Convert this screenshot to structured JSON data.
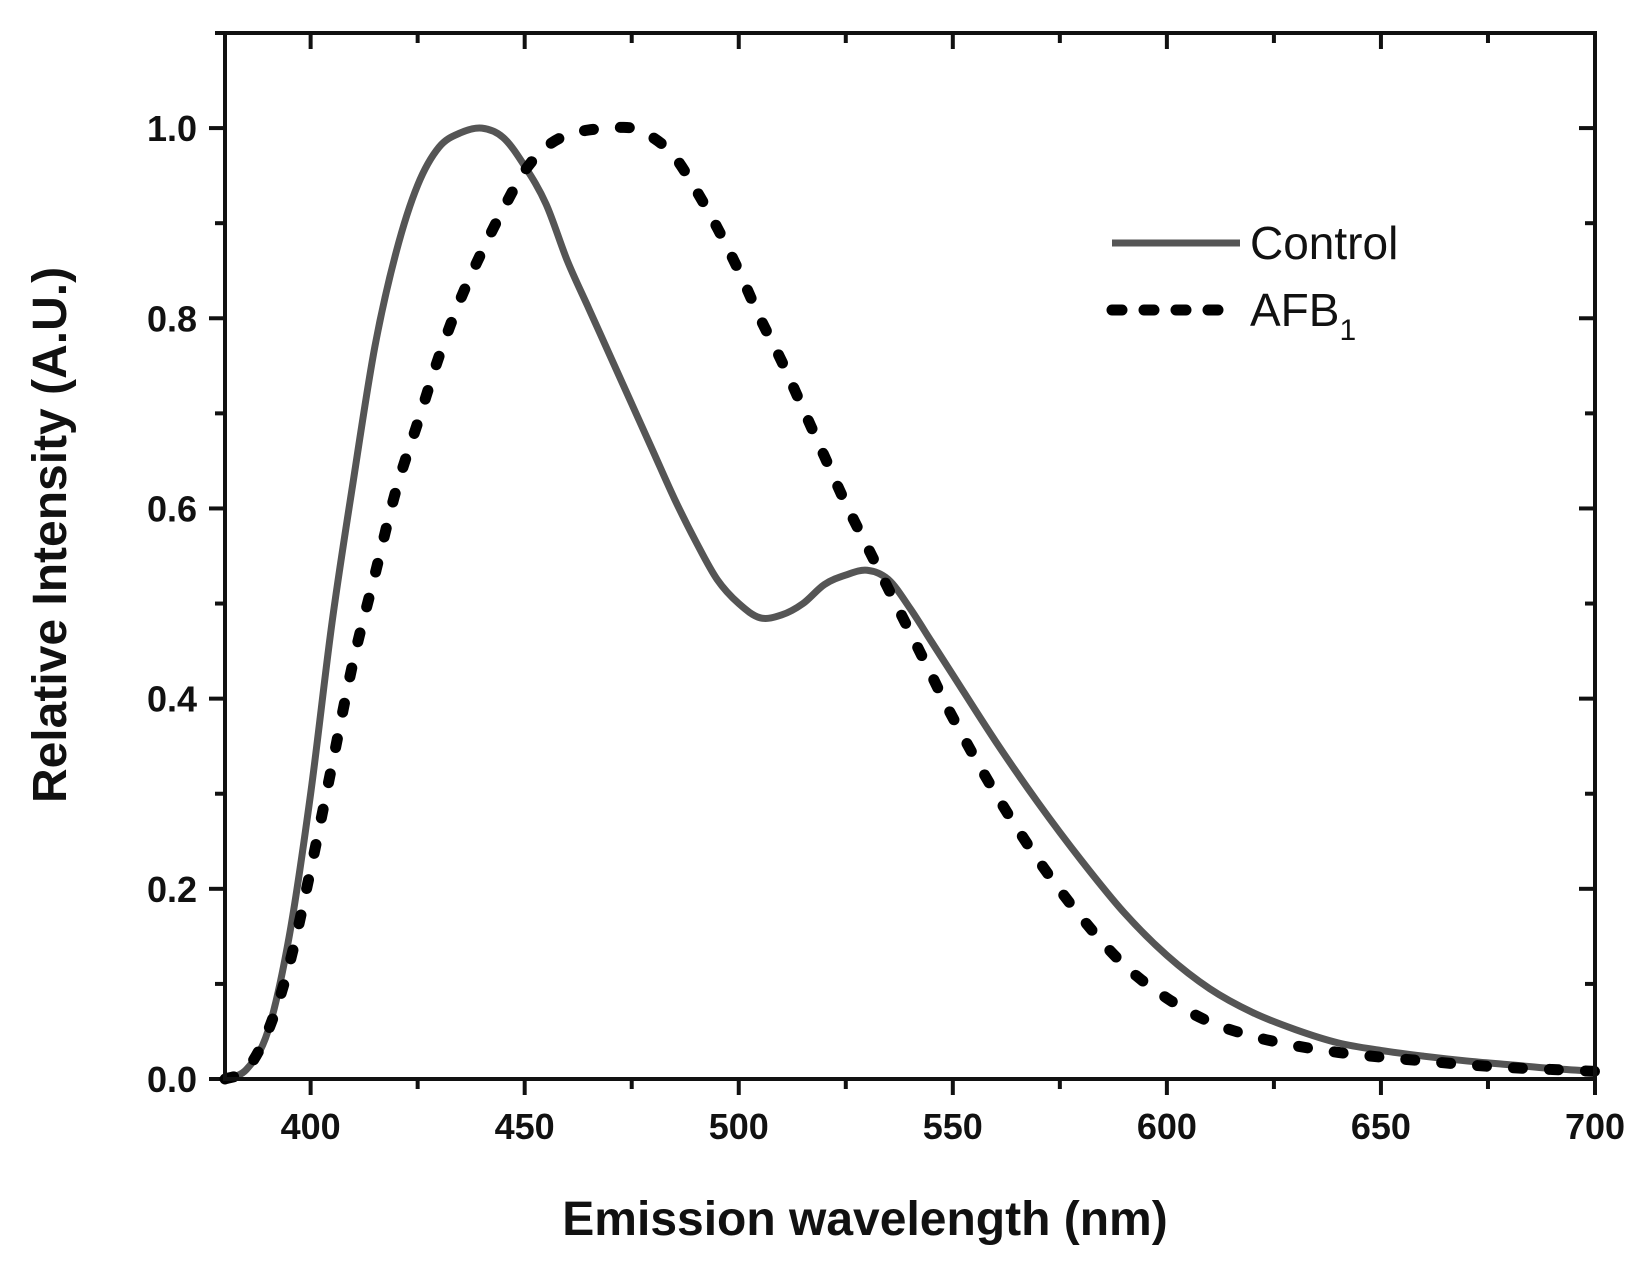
{
  "chart_data": {
    "type": "line",
    "xlabel": "Emission wavelength (nm)",
    "ylabel": "Relative Intensity (A.U.)",
    "xlim": [
      380,
      700
    ],
    "ylim": [
      0,
      1.1
    ],
    "x_ticks": [
      400,
      450,
      500,
      550,
      600,
      650,
      700
    ],
    "x_tick_labels": [
      "400",
      "450",
      "500",
      "550",
      "600",
      "650",
      "700"
    ],
    "y_ticks": [
      0.0,
      0.2,
      0.4,
      0.6,
      0.8,
      1.0
    ],
    "y_tick_labels": [
      "0.0",
      "0.2",
      "0.4",
      "0.6",
      "0.8",
      "1.0"
    ],
    "grid": false,
    "legend_position": "top-right",
    "series": [
      {
        "name": "Control",
        "legend_label": "Control",
        "style": "solid",
        "color": "#555555",
        "x": [
          380,
          385,
          390,
          395,
          400,
          405,
          410,
          415,
          420,
          425,
          430,
          435,
          440,
          445,
          450,
          455,
          460,
          465,
          470,
          475,
          480,
          485,
          490,
          495,
          500,
          505,
          510,
          515,
          520,
          525,
          530,
          535,
          540,
          545,
          550,
          560,
          570,
          580,
          590,
          600,
          610,
          620,
          630,
          640,
          650,
          660,
          670,
          680,
          690,
          700
        ],
        "y": [
          0.0,
          0.01,
          0.05,
          0.15,
          0.3,
          0.48,
          0.63,
          0.77,
          0.87,
          0.94,
          0.98,
          0.995,
          1.0,
          0.99,
          0.96,
          0.92,
          0.86,
          0.81,
          0.76,
          0.71,
          0.66,
          0.61,
          0.565,
          0.525,
          0.5,
          0.485,
          0.488,
          0.5,
          0.52,
          0.53,
          0.535,
          0.525,
          0.495,
          0.46,
          0.425,
          0.355,
          0.29,
          0.23,
          0.175,
          0.13,
          0.095,
          0.07,
          0.052,
          0.038,
          0.03,
          0.024,
          0.019,
          0.015,
          0.011,
          0.008
        ]
      },
      {
        "name": "AFB1",
        "legend_label": "AFB",
        "legend_subscript": "1",
        "style": "dotted",
        "color": "#000000",
        "x": [
          380,
          385,
          390,
          395,
          400,
          405,
          410,
          415,
          420,
          425,
          430,
          435,
          440,
          445,
          450,
          455,
          460,
          465,
          470,
          475,
          480,
          485,
          490,
          495,
          500,
          505,
          510,
          515,
          520,
          525,
          530,
          535,
          540,
          545,
          550,
          560,
          570,
          580,
          590,
          600,
          610,
          620,
          630,
          640,
          650,
          660,
          670,
          680,
          690,
          700
        ],
        "y": [
          0.0,
          0.01,
          0.05,
          0.12,
          0.22,
          0.33,
          0.44,
          0.53,
          0.62,
          0.69,
          0.76,
          0.82,
          0.87,
          0.915,
          0.955,
          0.98,
          0.993,
          0.998,
          1.0,
          1.0,
          0.99,
          0.97,
          0.935,
          0.895,
          0.85,
          0.8,
          0.755,
          0.705,
          0.655,
          0.605,
          0.56,
          0.515,
          0.47,
          0.425,
          0.38,
          0.3,
          0.23,
          0.17,
          0.12,
          0.085,
          0.06,
          0.045,
          0.035,
          0.028,
          0.023,
          0.019,
          0.015,
          0.012,
          0.01,
          0.008
        ]
      }
    ]
  }
}
